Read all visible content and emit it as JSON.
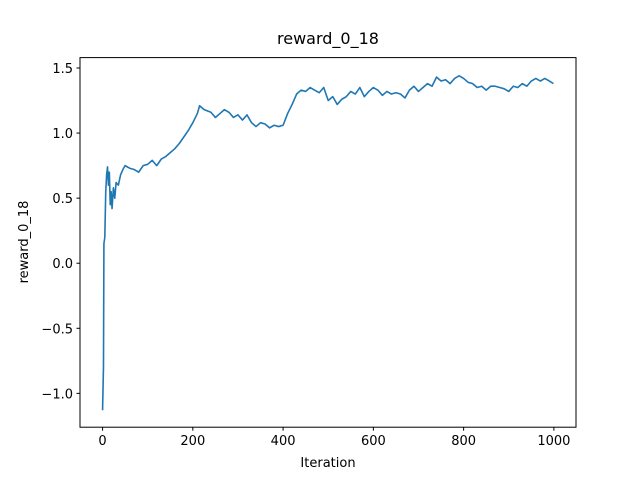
{
  "chart_data": {
    "type": "line",
    "title": "reward_0_18",
    "x_label": "Iteration",
    "y_label": "reward_0_18",
    "x": [
      0,
      2,
      3,
      5,
      7,
      9,
      11,
      13,
      15,
      17,
      19,
      21,
      24,
      27,
      30,
      35,
      40,
      45,
      50,
      60,
      70,
      80,
      90,
      100,
      110,
      120,
      130,
      140,
      150,
      160,
      170,
      180,
      190,
      200,
      210,
      215,
      225,
      240,
      250,
      260,
      270,
      280,
      290,
      300,
      310,
      320,
      330,
      340,
      350,
      360,
      370,
      380,
      390,
      400,
      410,
      420,
      430,
      440,
      450,
      460,
      470,
      480,
      490,
      500,
      510,
      520,
      530,
      540,
      550,
      560,
      570,
      580,
      590,
      600,
      610,
      620,
      630,
      640,
      650,
      660,
      670,
      680,
      690,
      700,
      710,
      720,
      730,
      740,
      750,
      760,
      770,
      780,
      790,
      800,
      810,
      820,
      830,
      840,
      850,
      860,
      870,
      880,
      890,
      900,
      910,
      920,
      930,
      940,
      950,
      960,
      970,
      980,
      990,
      999
    ],
    "series": [
      {
        "name": "reward_0_18",
        "color": "#1f77b4",
        "values": [
          -1.13,
          -0.8,
          0.15,
          0.2,
          0.55,
          0.68,
          0.74,
          0.6,
          0.7,
          0.45,
          0.55,
          0.42,
          0.58,
          0.5,
          0.62,
          0.6,
          0.68,
          0.72,
          0.75,
          0.73,
          0.72,
          0.7,
          0.75,
          0.76,
          0.79,
          0.75,
          0.8,
          0.82,
          0.85,
          0.88,
          0.92,
          0.97,
          1.02,
          1.08,
          1.15,
          1.21,
          1.18,
          1.16,
          1.12,
          1.15,
          1.18,
          1.16,
          1.12,
          1.14,
          1.1,
          1.14,
          1.08,
          1.05,
          1.08,
          1.07,
          1.04,
          1.06,
          1.05,
          1.06,
          1.15,
          1.22,
          1.3,
          1.33,
          1.32,
          1.35,
          1.33,
          1.31,
          1.35,
          1.25,
          1.28,
          1.22,
          1.26,
          1.28,
          1.32,
          1.3,
          1.35,
          1.28,
          1.32,
          1.35,
          1.33,
          1.29,
          1.32,
          1.3,
          1.31,
          1.3,
          1.27,
          1.33,
          1.36,
          1.32,
          1.35,
          1.38,
          1.36,
          1.43,
          1.4,
          1.41,
          1.38,
          1.42,
          1.44,
          1.42,
          1.39,
          1.38,
          1.35,
          1.36,
          1.33,
          1.36,
          1.36,
          1.35,
          1.34,
          1.32,
          1.36,
          1.35,
          1.38,
          1.36,
          1.4,
          1.42,
          1.4,
          1.42,
          1.4,
          1.38
        ]
      }
    ],
    "xlim": [
      -50,
      1049
    ],
    "xticks": [
      0,
      200,
      400,
      600,
      800,
      1000
    ],
    "ylim": [
      -1.26,
      1.58
    ],
    "yticks": [
      {
        "value": -1,
        "label": "−1.0"
      },
      {
        "value": -0.5,
        "label": "−0.5"
      },
      {
        "value": 0,
        "label": "0.0"
      },
      0.5,
      {
        "value": 1,
        "label": "1.0"
      },
      1.5
    ]
  }
}
